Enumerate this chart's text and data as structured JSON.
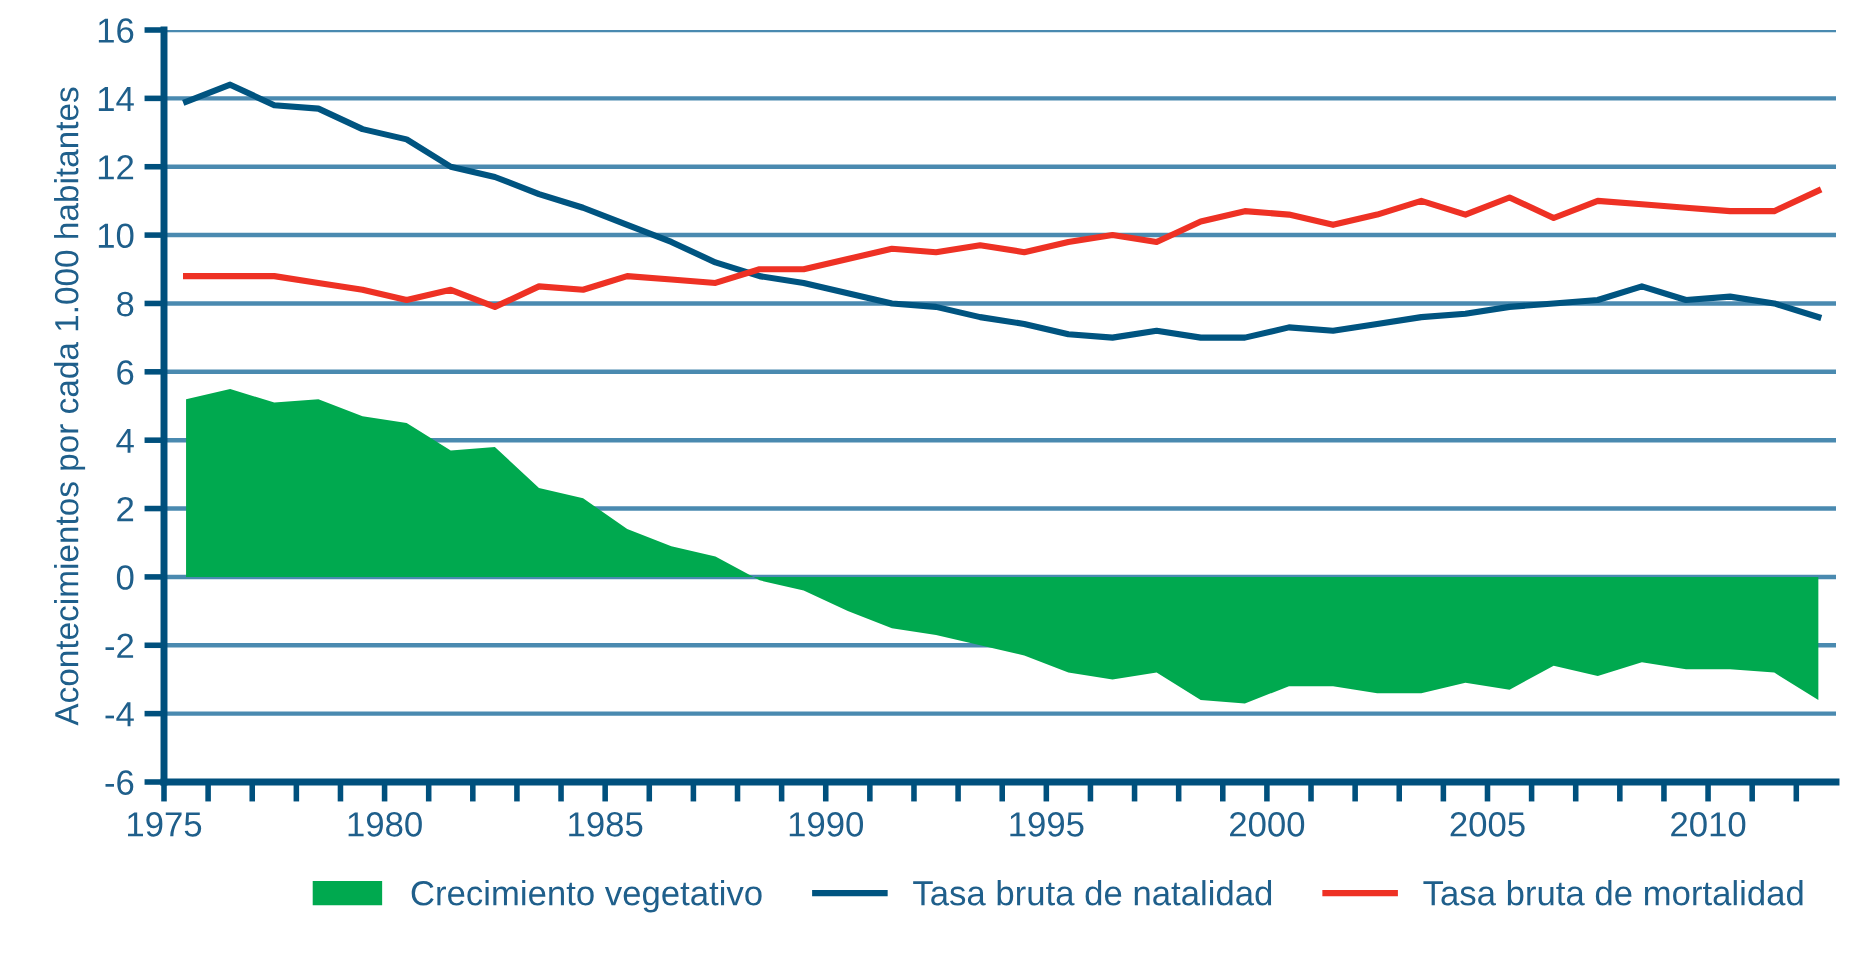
{
  "chart_data": {
    "type": "line",
    "ylabel": "Acontecimientos por cada 1.000 habitantes",
    "x": [
      1975.5,
      1976.5,
      1977.5,
      1978.5,
      1979.5,
      1980.5,
      1981.5,
      1982.5,
      1983.5,
      1984.5,
      1985.5,
      1986.5,
      1987.5,
      1988.5,
      1989.5,
      1990.5,
      1991.5,
      1992.5,
      1993.5,
      1994.5,
      1995.5,
      1996.5,
      1997.5,
      1998.5,
      1999.5,
      2000.5,
      2001.5,
      2002.5,
      2003.5,
      2004.5,
      2005.5,
      2006.5,
      2007.5,
      2008.5,
      2009.5,
      2010.5,
      2011.5,
      2012.5
    ],
    "series": [
      {
        "name": "Crecimiento vegetativo",
        "type": "area",
        "color": "#00a94f",
        "values": [
          5.2,
          5.5,
          5.1,
          5.2,
          4.7,
          4.5,
          3.7,
          3.8,
          2.6,
          2.3,
          1.4,
          0.9,
          0.6,
          -0.1,
          -0.4,
          -1.0,
          -1.5,
          -1.7,
          -2.0,
          -2.3,
          -2.8,
          -3.0,
          -2.8,
          -3.6,
          -3.7,
          -3.2,
          -3.2,
          -3.4,
          -3.4,
          -3.1,
          -3.3,
          -2.6,
          -2.9,
          -2.5,
          -2.7,
          -2.7,
          -2.8,
          -3.6
        ]
      },
      {
        "name": "Tasa bruta de natalidad",
        "color": "#005480",
        "values": [
          13.9,
          14.4,
          13.8,
          13.7,
          13.1,
          12.8,
          12.0,
          11.7,
          11.2,
          10.8,
          10.3,
          9.8,
          9.2,
          8.8,
          8.6,
          8.3,
          8.0,
          7.9,
          7.6,
          7.4,
          7.1,
          7.0,
          7.2,
          7.0,
          7.0,
          7.3,
          7.2,
          7.4,
          7.6,
          7.7,
          7.9,
          8.0,
          8.1,
          8.5,
          8.1,
          8.2,
          8.0,
          7.6
        ]
      },
      {
        "name": "Tasa bruta de mortalidad",
        "color": "#ee3124",
        "values": [
          8.8,
          8.8,
          8.8,
          8.6,
          8.4,
          8.1,
          8.4,
          7.9,
          8.5,
          8.4,
          8.8,
          8.7,
          8.6,
          9.0,
          9.0,
          9.3,
          9.6,
          9.5,
          9.7,
          9.5,
          9.8,
          10.0,
          9.8,
          10.4,
          10.7,
          10.6,
          10.3,
          10.6,
          11.0,
          10.6,
          11.1,
          10.5,
          11.0,
          10.9,
          10.8,
          10.7,
          10.7,
          11.3
        ]
      }
    ],
    "xlim": [
      1975,
      2012.9
    ],
    "xticks": [
      1975,
      {
        "value": 1976,
        "label": null
      },
      {
        "value": 1977,
        "label": null
      },
      {
        "value": 1978,
        "label": null
      },
      {
        "value": 1979,
        "label": null
      },
      1980,
      {
        "value": 1981,
        "label": null
      },
      {
        "value": 1982,
        "label": null
      },
      {
        "value": 1983,
        "label": null
      },
      {
        "value": 1984,
        "label": null
      },
      1985,
      {
        "value": 1986,
        "label": null
      },
      {
        "value": 1987,
        "label": null
      },
      {
        "value": 1988,
        "label": null
      },
      {
        "value": 1989,
        "label": null
      },
      1990,
      {
        "value": 1991,
        "label": null
      },
      {
        "value": 1992,
        "label": null
      },
      {
        "value": 1993,
        "label": null
      },
      {
        "value": 1994,
        "label": null
      },
      1995,
      {
        "value": 1996,
        "label": null
      },
      {
        "value": 1997,
        "label": null
      },
      {
        "value": 1998,
        "label": null
      },
      {
        "value": 1999,
        "label": null
      },
      2000,
      {
        "value": 2001,
        "label": null
      },
      {
        "value": 2002,
        "label": null
      },
      {
        "value": 2003,
        "label": null
      },
      {
        "value": 2004,
        "label": null
      },
      2005,
      {
        "value": 2006,
        "label": null
      },
      {
        "value": 2007,
        "label": null
      },
      {
        "value": 2008,
        "label": null
      },
      {
        "value": 2009,
        "label": null
      },
      2010,
      {
        "value": 2011,
        "label": null
      },
      {
        "value": 2012,
        "label": null
      }
    ],
    "ylim": [
      -6,
      16
    ],
    "yticks": [
      -6,
      -4,
      -2,
      0,
      2,
      4,
      6,
      8,
      10,
      12,
      14,
      16
    ],
    "grid": "y",
    "legend": "bottom"
  }
}
